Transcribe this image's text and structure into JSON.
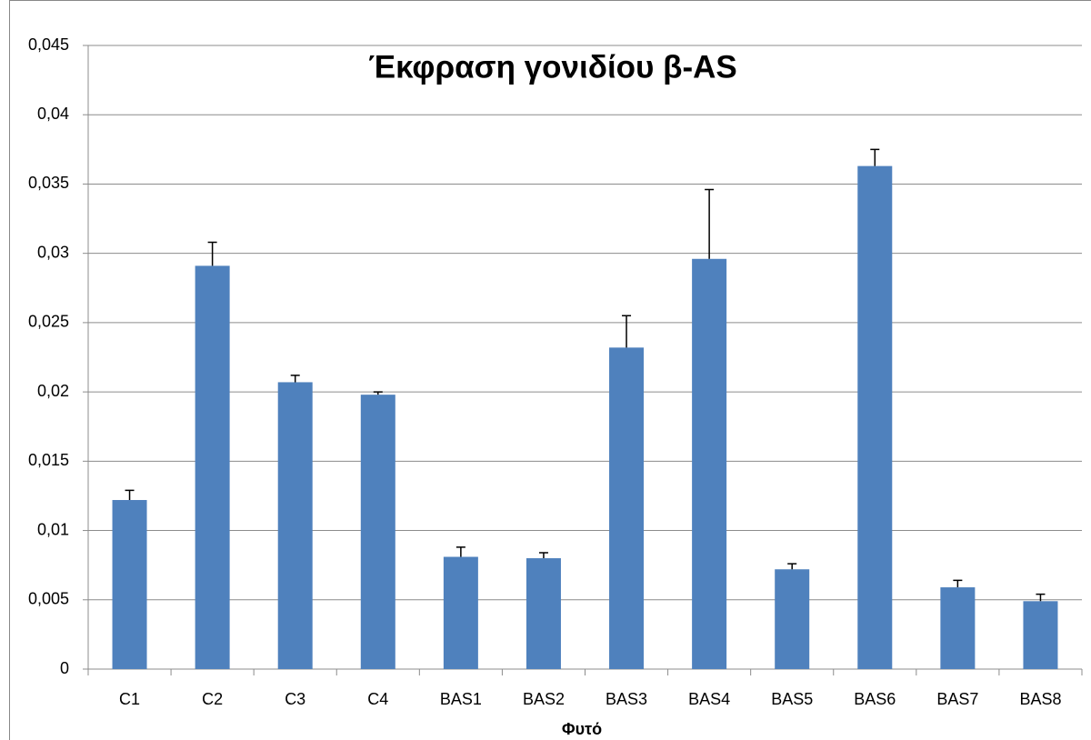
{
  "chart_data": {
    "type": "bar",
    "title": "Έκφραση γονιδίου β-AS",
    "x_label": "Φυτό",
    "categories": [
      "C1",
      "C2",
      "C3",
      "C4",
      "BAS1",
      "BAS2",
      "BAS3",
      "BAS4",
      "BAS5",
      "BAS6",
      "BAS7",
      "BAS8"
    ],
    "values": [
      0.0122,
      0.0291,
      0.0207,
      0.0198,
      0.0081,
      0.008,
      0.0232,
      0.0296,
      0.0072,
      0.0363,
      0.0059,
      0.0049
    ],
    "errors": [
      0.0007,
      0.0017,
      0.0005,
      0.0002,
      0.0007,
      0.0004,
      0.0023,
      0.005,
      0.0004,
      0.0012,
      0.0005,
      0.0005
    ],
    "color": "#4f81bd",
    "ylim": [
      0,
      0.045
    ],
    "yticks": [
      0,
      {
        "value": 0.005,
        "label": "0,005"
      },
      {
        "value": 0.01,
        "label": "0,01"
      },
      {
        "value": 0.015,
        "label": "0,015"
      },
      {
        "value": 0.02,
        "label": "0,02"
      },
      {
        "value": 0.025,
        "label": "0,025"
      },
      {
        "value": 0.03,
        "label": "0,03"
      },
      {
        "value": 0.035,
        "label": "0,035"
      },
      {
        "value": 0.04,
        "label": "0,04"
      },
      {
        "value": 0.045,
        "label": "0,045"
      }
    ],
    "grid": true
  }
}
